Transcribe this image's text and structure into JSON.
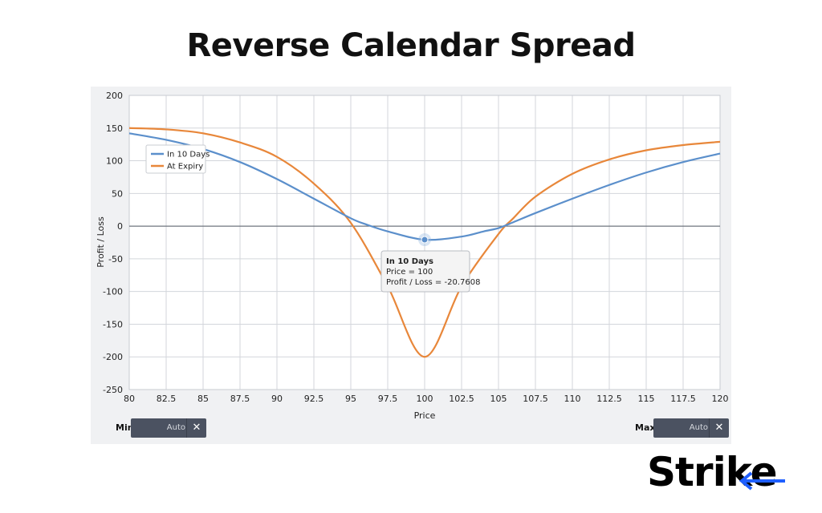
{
  "title": "Reverse Calendar Spread",
  "brand": {
    "name": "Strike",
    "accent_color": "#1f5fff"
  },
  "controls": {
    "min": {
      "label": "Min",
      "value": "Auto",
      "clear_icon": "close-icon"
    },
    "max": {
      "label": "Max",
      "value": "Auto",
      "clear_icon": "close-icon"
    }
  },
  "chart_data": {
    "type": "line",
    "xlabel": "Price",
    "ylabel": "Profit / Loss",
    "xlim": [
      80,
      120
    ],
    "ylim": [
      -250,
      200
    ],
    "x_ticks": [
      80,
      82.5,
      85,
      87.5,
      90,
      92.5,
      95,
      97.5,
      100,
      102.5,
      105,
      107.5,
      110,
      112.5,
      115,
      117.5,
      120
    ],
    "y_ticks": [
      200,
      150,
      100,
      50,
      0,
      -50,
      -100,
      -150,
      -200,
      -250
    ],
    "grid": true,
    "legend_position": "top-left",
    "series": [
      {
        "name": "In 10 Days",
        "color": "#5b8fcb",
        "points": [
          [
            80,
            142
          ],
          [
            82.5,
            132
          ],
          [
            85,
            118
          ],
          [
            87.5,
            98
          ],
          [
            90,
            72
          ],
          [
            92.5,
            42
          ],
          [
            95,
            12
          ],
          [
            96,
            3
          ],
          [
            97.5,
            -8
          ],
          [
            100,
            -20.8
          ],
          [
            102.5,
            -16
          ],
          [
            104,
            -8
          ],
          [
            105,
            -3
          ],
          [
            106,
            6
          ],
          [
            107.5,
            20
          ],
          [
            110,
            42
          ],
          [
            112.5,
            63
          ],
          [
            115,
            82
          ],
          [
            117.5,
            98
          ],
          [
            120,
            111
          ]
        ]
      },
      {
        "name": "At Expiry",
        "color": "#e8873a",
        "points": [
          [
            80,
            150
          ],
          [
            82.5,
            148
          ],
          [
            85,
            142
          ],
          [
            87.5,
            128
          ],
          [
            90,
            106
          ],
          [
            92.5,
            65
          ],
          [
            95,
            5
          ],
          [
            97.5,
            -92
          ],
          [
            100,
            -200
          ],
          [
            102.5,
            -92
          ],
          [
            105,
            -12
          ],
          [
            106,
            12
          ],
          [
            107.5,
            45
          ],
          [
            110,
            80
          ],
          [
            112.5,
            102
          ],
          [
            115,
            116
          ],
          [
            117.5,
            124
          ],
          [
            120,
            129
          ]
        ]
      }
    ],
    "tooltip": {
      "series": "In 10 Days",
      "price_text": "Price = 100",
      "pl_text": "Profit / Loss = -20.7608",
      "x": 100,
      "y": -20.7608
    }
  }
}
